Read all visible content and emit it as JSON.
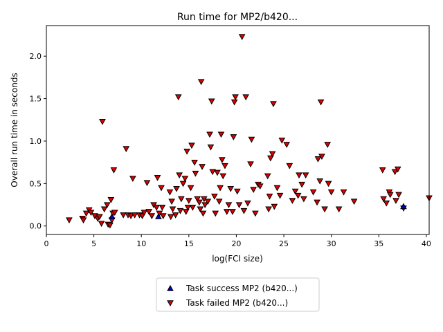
{
  "chart_data": {
    "type": "scatter",
    "title": "Run time for MP2/b420...",
    "xlabel": "log(FCI size)",
    "ylabel": "Overall run time in seconds",
    "xlim": [
      0,
      40.3
    ],
    "ylim": [
      -0.1,
      2.36
    ],
    "xticks": [
      0,
      5,
      10,
      15,
      20,
      25,
      30,
      35,
      40
    ],
    "yticks": [
      0.0,
      0.5,
      1.0,
      1.5,
      2.0
    ],
    "xtick_labels": [
      "0",
      "5",
      "10",
      "15",
      "20",
      "25",
      "30",
      "35",
      "40"
    ],
    "ytick_labels": [
      "0.0",
      "0.5",
      "1.0",
      "1.5",
      "2.0"
    ],
    "grid": false,
    "legend_position": "bottom-center, below plot",
    "series": [
      {
        "name": "Task success MP2 (b420...)",
        "marker": "triangle-up",
        "color": "#0000cc",
        "points": [
          [
            6.9,
            0.11
          ],
          [
            11.8,
            0.11
          ],
          [
            37.6,
            0.23
          ]
        ]
      },
      {
        "name": "Task failed MP2 (b420...)",
        "marker": "triangle-down",
        "color": "#dd0000",
        "points": [
          [
            2.4,
            0.07
          ],
          [
            3.8,
            0.09
          ],
          [
            3.9,
            0.07
          ],
          [
            4.2,
            0.15
          ],
          [
            4.5,
            0.19
          ],
          [
            4.7,
            0.16
          ],
          [
            5.1,
            0.12
          ],
          [
            5.4,
            0.09
          ],
          [
            5.6,
            0.11
          ],
          [
            5.8,
            0.03
          ],
          [
            5.9,
            1.23
          ],
          [
            6.1,
            0.2
          ],
          [
            6.4,
            0.25
          ],
          [
            6.5,
            0.02
          ],
          [
            6.7,
            0.01
          ],
          [
            6.8,
            0.31
          ],
          [
            6.9,
            0.07
          ],
          [
            7.0,
            0.15
          ],
          [
            7.1,
            0.66
          ],
          [
            7.2,
            0.16
          ],
          [
            8.1,
            0.13
          ],
          [
            8.4,
            0.91
          ],
          [
            8.6,
            0.13
          ],
          [
            8.9,
            0.12
          ],
          [
            9.1,
            0.56
          ],
          [
            9.3,
            0.13
          ],
          [
            9.8,
            0.13
          ],
          [
            10.1,
            0.12
          ],
          [
            10.3,
            0.16
          ],
          [
            10.6,
            0.51
          ],
          [
            10.8,
            0.17
          ],
          [
            11.1,
            0.12
          ],
          [
            11.3,
            0.25
          ],
          [
            11.6,
            0.22
          ],
          [
            11.7,
            0.57
          ],
          [
            11.9,
            0.15
          ],
          [
            12.1,
            0.45
          ],
          [
            12.2,
            0.22
          ],
          [
            12.3,
            0.12
          ],
          [
            13.0,
            0.4
          ],
          [
            13.1,
            0.11
          ],
          [
            13.2,
            0.29
          ],
          [
            13.3,
            0.2
          ],
          [
            13.6,
            0.13
          ],
          [
            13.7,
            0.44
          ],
          [
            13.9,
            1.52
          ],
          [
            14.0,
            0.6
          ],
          [
            14.1,
            0.18
          ],
          [
            14.2,
            0.32
          ],
          [
            14.4,
            0.5
          ],
          [
            14.6,
            0.56
          ],
          [
            14.7,
            0.17
          ],
          [
            14.8,
            0.88
          ],
          [
            14.9,
            0.22
          ],
          [
            15.0,
            0.3
          ],
          [
            15.2,
            0.45
          ],
          [
            15.3,
            0.95
          ],
          [
            15.4,
            0.22
          ],
          [
            15.6,
            0.75
          ],
          [
            15.7,
            0.62
          ],
          [
            15.9,
            0.32
          ],
          [
            16.1,
            0.28
          ],
          [
            16.2,
            0.2
          ],
          [
            16.3,
            1.7
          ],
          [
            16.4,
            0.7
          ],
          [
            16.5,
            0.15
          ],
          [
            16.6,
            0.32
          ],
          [
            16.7,
            0.25
          ],
          [
            17.0,
            0.29
          ],
          [
            17.2,
            1.08
          ],
          [
            17.3,
            0.93
          ],
          [
            17.4,
            1.47
          ],
          [
            17.5,
            0.64
          ],
          [
            17.7,
            0.35
          ],
          [
            17.8,
            0.15
          ],
          [
            18.0,
            0.63
          ],
          [
            18.2,
            0.29
          ],
          [
            18.3,
            0.45
          ],
          [
            18.4,
            1.08
          ],
          [
            18.5,
            0.78
          ],
          [
            18.6,
            0.59
          ],
          [
            18.8,
            0.71
          ],
          [
            19.0,
            0.17
          ],
          [
            19.2,
            0.25
          ],
          [
            19.4,
            0.44
          ],
          [
            19.6,
            0.17
          ],
          [
            19.7,
            1.05
          ],
          [
            19.8,
            1.46
          ],
          [
            19.9,
            1.52
          ],
          [
            20.1,
            0.41
          ],
          [
            20.3,
            0.25
          ],
          [
            20.6,
            2.23
          ],
          [
            20.8,
            0.18
          ],
          [
            21.0,
            1.52
          ],
          [
            21.2,
            0.27
          ],
          [
            21.5,
            0.73
          ],
          [
            21.6,
            1.02
          ],
          [
            21.8,
            0.43
          ],
          [
            22.0,
            0.15
          ],
          [
            22.3,
            0.49
          ],
          [
            22.5,
            0.47
          ],
          [
            23.3,
            0.59
          ],
          [
            23.4,
            0.2
          ],
          [
            23.5,
            0.35
          ],
          [
            23.6,
            0.8
          ],
          [
            23.8,
            0.85
          ],
          [
            23.9,
            1.44
          ],
          [
            24.0,
            0.23
          ],
          [
            24.3,
            0.45
          ],
          [
            24.6,
            0.36
          ],
          [
            24.8,
            1.01
          ],
          [
            25.3,
            0.96
          ],
          [
            25.6,
            0.71
          ],
          [
            25.9,
            0.3
          ],
          [
            26.2,
            0.41
          ],
          [
            26.5,
            0.36
          ],
          [
            26.6,
            0.6
          ],
          [
            26.9,
            0.49
          ],
          [
            27.1,
            0.32
          ],
          [
            27.3,
            0.6
          ],
          [
            28.1,
            0.4
          ],
          [
            28.5,
            0.28
          ],
          [
            28.6,
            0.79
          ],
          [
            28.8,
            0.53
          ],
          [
            28.9,
            1.46
          ],
          [
            29.0,
            0.82
          ],
          [
            29.3,
            0.2
          ],
          [
            29.6,
            0.96
          ],
          [
            29.7,
            0.5
          ],
          [
            30.0,
            0.4
          ],
          [
            30.8,
            0.2
          ],
          [
            31.3,
            0.4
          ],
          [
            32.4,
            0.29
          ],
          [
            35.4,
            0.66
          ],
          [
            35.5,
            0.32
          ],
          [
            35.8,
            0.27
          ],
          [
            36.1,
            0.4
          ],
          [
            36.2,
            0.37
          ],
          [
            36.7,
            0.64
          ],
          [
            36.8,
            0.3
          ],
          [
            37.0,
            0.67
          ],
          [
            37.1,
            0.37
          ],
          [
            37.6,
            0.21
          ],
          [
            40.3,
            0.33
          ]
        ]
      }
    ]
  }
}
